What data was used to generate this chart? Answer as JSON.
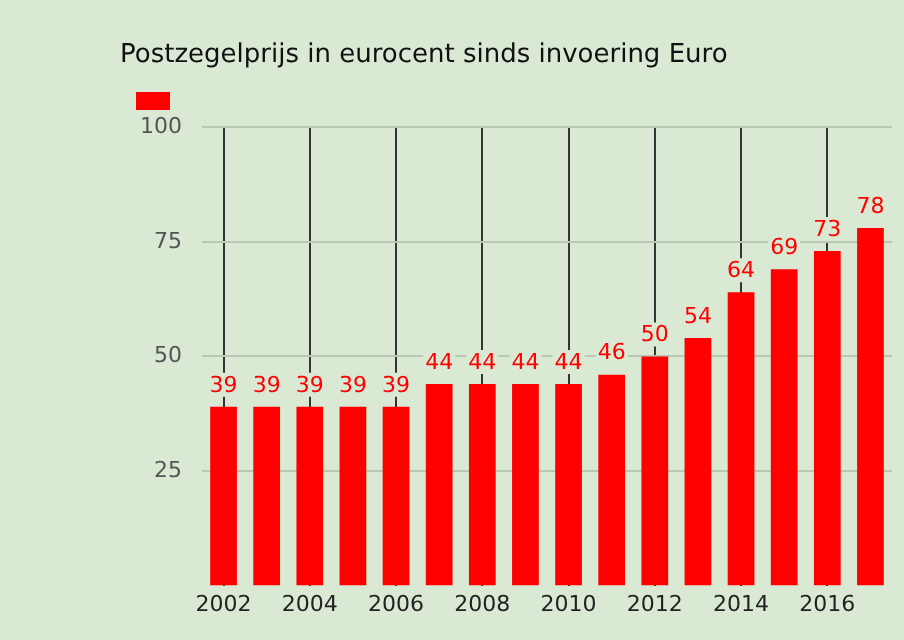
{
  "chart_data": {
    "type": "bar",
    "title": "Postzegelprijs in eurocent sinds invoering Euro",
    "categories": [
      "2002",
      null,
      "2004",
      null,
      "2006",
      null,
      "2008",
      null,
      "2010",
      null,
      "2012",
      null,
      "2014",
      null,
      "2016",
      null
    ],
    "series": [
      {
        "color": "#ff0000",
        "values": [
          39,
          39,
          39,
          39,
          39,
          44,
          44,
          44,
          44,
          46,
          50,
          54,
          64,
          69,
          73,
          78
        ]
      }
    ],
    "ylim": [
      0,
      100
    ],
    "yticks": [
      25,
      50,
      75,
      100
    ],
    "grid": true,
    "data_labels": true
  }
}
